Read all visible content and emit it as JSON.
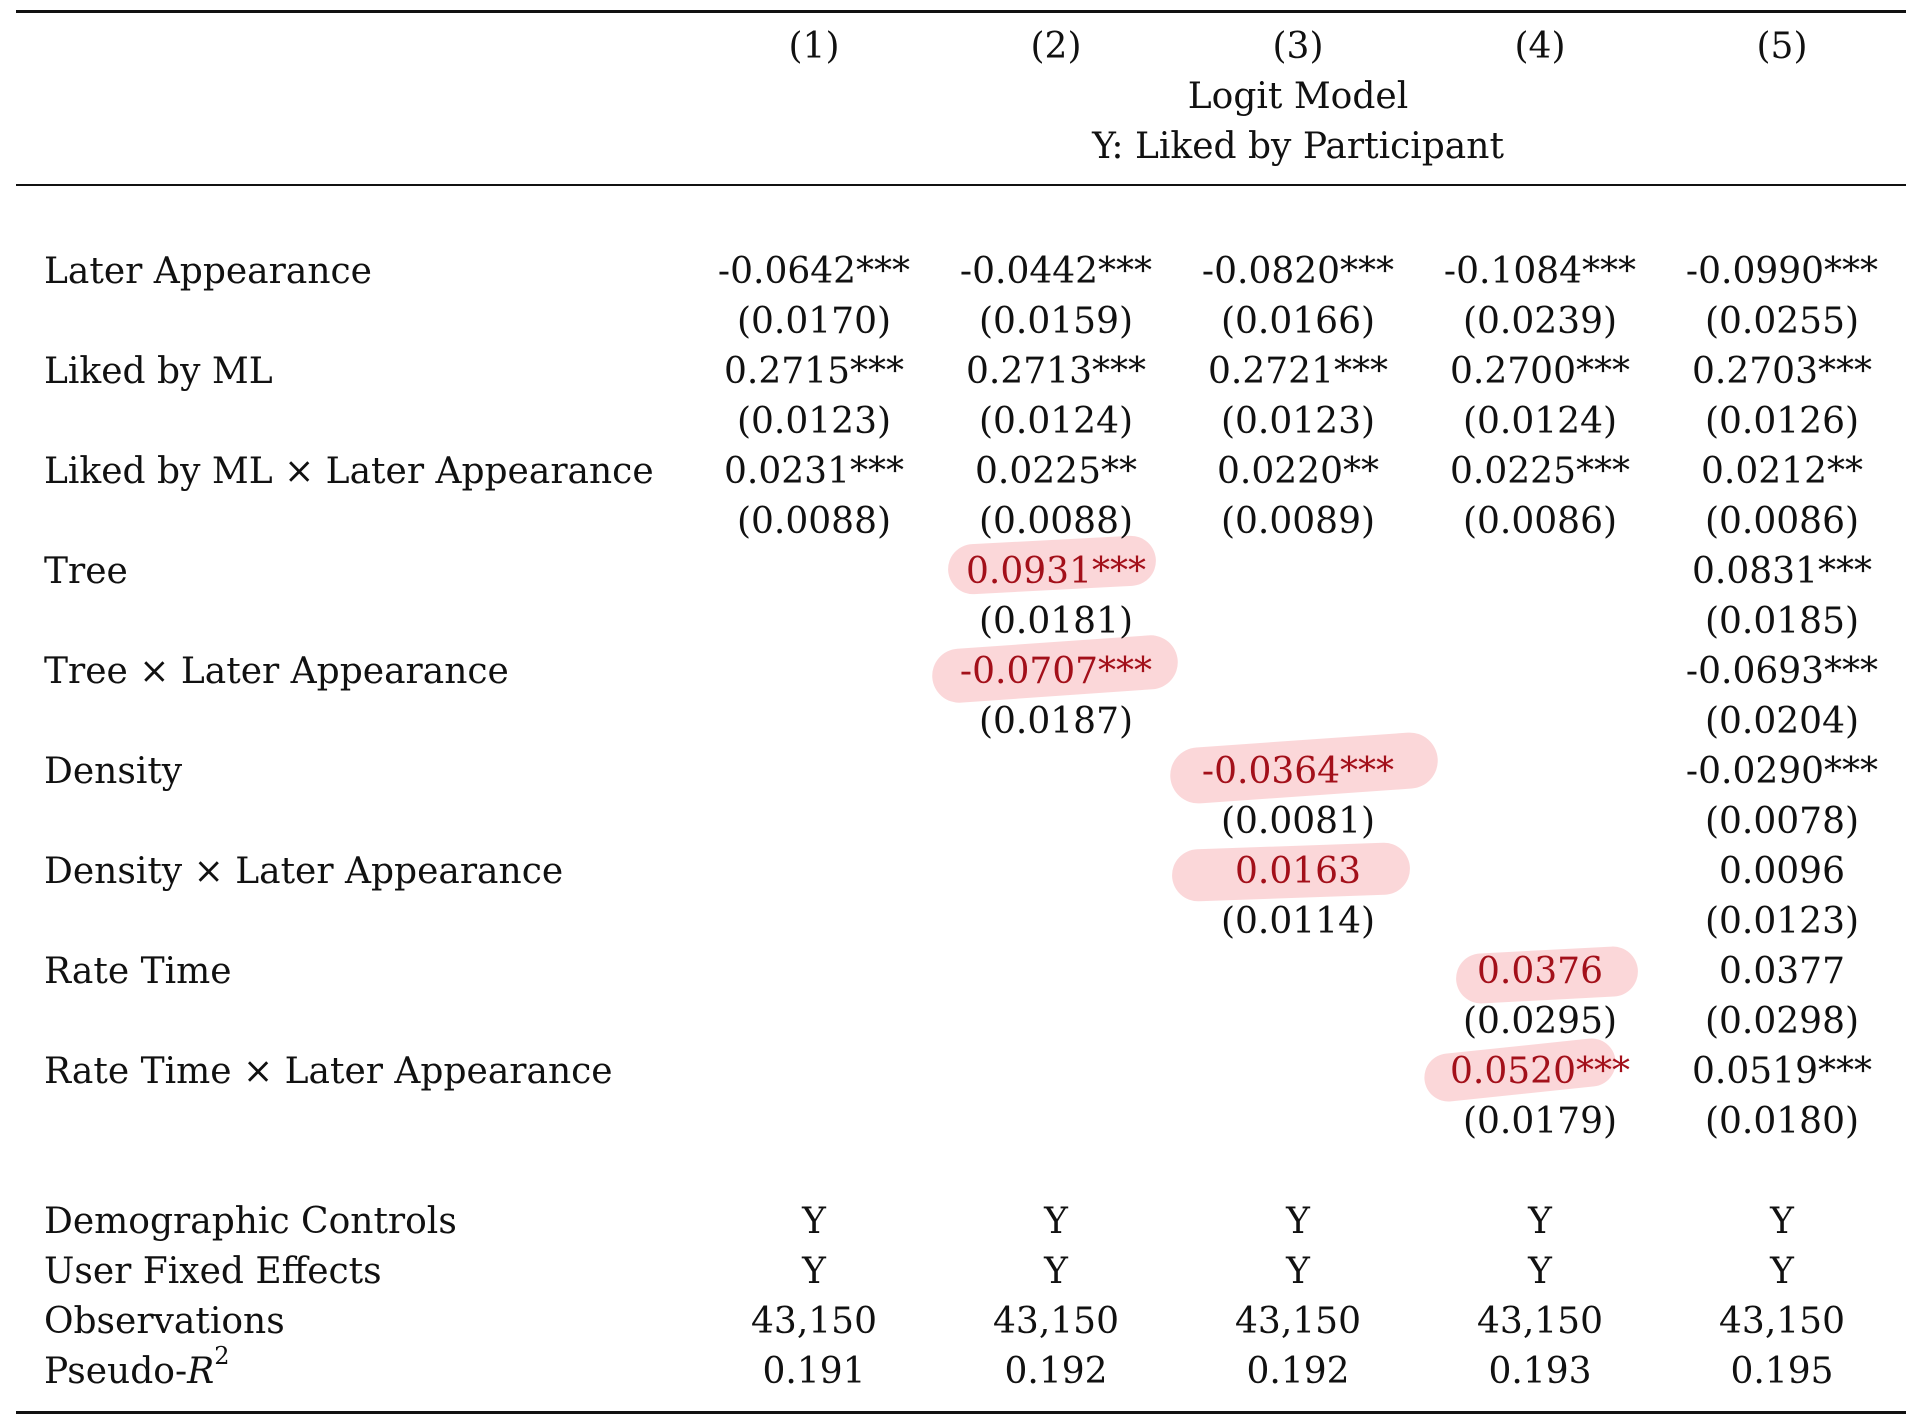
{
  "header": {
    "columns": [
      "(1)",
      "(2)",
      "(3)",
      "(4)",
      "(5)"
    ],
    "model_title": "Logit Model",
    "dependent_var": "Y: Liked by Participant"
  },
  "rows": [
    {
      "label": "Later Appearance",
      "coef": [
        "-0.0642***",
        "-0.0442***",
        "-0.0820***",
        "-0.1084***",
        "-0.0990***"
      ],
      "se": [
        "(0.0170)",
        "(0.0159)",
        "(0.0166)",
        "(0.0239)",
        "(0.0255)"
      ]
    },
    {
      "label": "Liked by ML",
      "coef": [
        "0.2715***",
        "0.2713***",
        "0.2721***",
        "0.2700***",
        "0.2703***"
      ],
      "se": [
        "(0.0123)",
        "(0.0124)",
        "(0.0123)",
        "(0.0124)",
        "(0.0126)"
      ]
    },
    {
      "label": "Liked by ML × Later Appearance",
      "coef": [
        "0.0231***",
        "0.0225**",
        "0.0220**",
        "0.0225***",
        "0.0212**"
      ],
      "se": [
        "(0.0088)",
        "(0.0088)",
        "(0.0089)",
        "(0.0086)",
        "(0.0086)"
      ]
    },
    {
      "label": "Tree",
      "coef": [
        "",
        "0.0931***",
        "",
        "",
        "0.0831***"
      ],
      "se": [
        "",
        "(0.0181)",
        "",
        "",
        "(0.0185)"
      ]
    },
    {
      "label": "Tree × Later Appearance",
      "coef": [
        "",
        "-0.0707***",
        "",
        "",
        "-0.0693***"
      ],
      "se": [
        "",
        "(0.0187)",
        "",
        "",
        "(0.0204)"
      ]
    },
    {
      "label": "Density",
      "coef": [
        "",
        "",
        "-0.0364***",
        "",
        "-0.0290***"
      ],
      "se": [
        "",
        "",
        "(0.0081)",
        "",
        "(0.0078)"
      ]
    },
    {
      "label": "Density × Later Appearance",
      "coef": [
        "",
        "",
        "0.0163",
        "",
        "0.0096"
      ],
      "se": [
        "",
        "",
        "(0.0114)",
        "",
        "(0.0123)"
      ]
    },
    {
      "label": "Rate Time",
      "coef": [
        "",
        "",
        "",
        "0.0376",
        "0.0377"
      ],
      "se": [
        "",
        "",
        "",
        "(0.0295)",
        "(0.0298)"
      ]
    },
    {
      "label": "Rate Time × Later Appearance",
      "coef": [
        "",
        "",
        "",
        "0.0520***",
        "0.0519***"
      ],
      "se": [
        "",
        "",
        "",
        "(0.0179)",
        "(0.0180)"
      ]
    }
  ],
  "footer": [
    {
      "label": "Demographic Controls",
      "values": [
        "Y",
        "Y",
        "Y",
        "Y",
        "Y"
      ]
    },
    {
      "label": "User Fixed Effects",
      "values": [
        "Y",
        "Y",
        "Y",
        "Y",
        "Y"
      ]
    },
    {
      "label": "Observations",
      "values": [
        "43,150",
        "43,150",
        "43,150",
        "43,150",
        "43,150"
      ]
    },
    {
      "label_prefix": "Pseudo-",
      "label_var": "R",
      "label_sup": "2",
      "values": [
        "0.191",
        "0.192",
        "0.192",
        "0.193",
        "0.195"
      ]
    }
  ],
  "highlight_color": "#a3101a"
}
